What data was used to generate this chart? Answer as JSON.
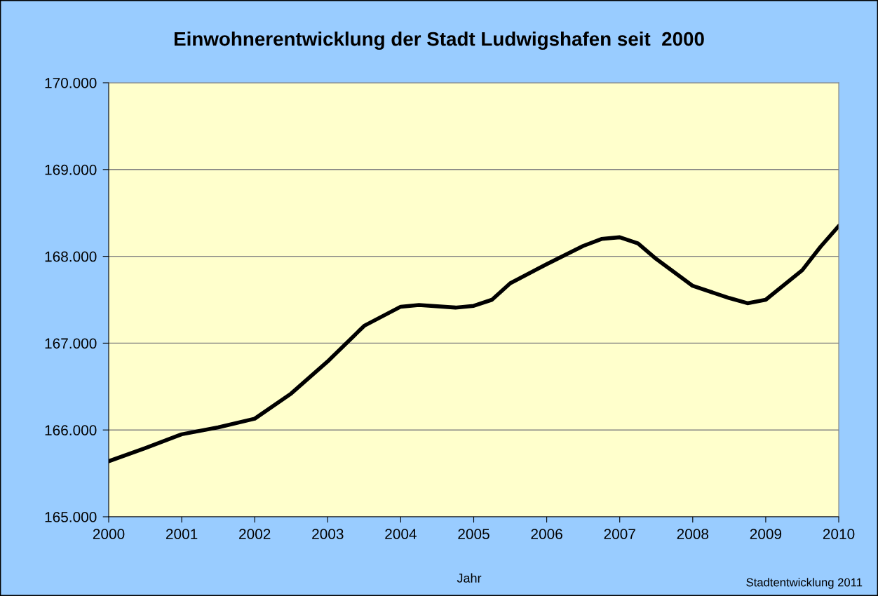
{
  "chart_data": {
    "type": "line",
    "title": "Einwohnerentwicklung der Stadt Ludwigshafen seit  2000",
    "xlabel": "Jahr",
    "series": [
      {
        "color": "#000000",
        "x": [
          2000,
          2000.5,
          2001,
          2001.5,
          2002,
          2002.5,
          2003,
          2003.5,
          2004,
          2004.25,
          2004.75,
          2005,
          2005.25,
          2005.5,
          2006,
          2006.5,
          2006.75,
          2007,
          2007.25,
          2007.5,
          2008,
          2008.5,
          2008.75,
          2009,
          2009.5,
          2009.75,
          2010
        ],
        "values": [
          165640,
          165790,
          165950,
          166030,
          166130,
          166420,
          166790,
          167200,
          167420,
          167440,
          167410,
          167430,
          167500,
          167690,
          167910,
          168120,
          168200,
          168220,
          168150,
          167970,
          167660,
          167520,
          167460,
          167500,
          167840,
          168110,
          168350
        ]
      }
    ],
    "xlim": [
      2000,
      2010
    ],
    "xticks": [
      2000,
      2001,
      2002,
      2003,
      2004,
      2005,
      2006,
      2007,
      2008,
      2009,
      2010
    ],
    "ylim": [
      165000,
      170000
    ],
    "yticks": [
      {
        "value": 165000,
        "label": "165.000"
      },
      {
        "value": 166000,
        "label": "166.000"
      },
      {
        "value": 167000,
        "label": "167.000"
      },
      {
        "value": 168000,
        "label": "168.000"
      },
      {
        "value": 169000,
        "label": "169.000"
      },
      {
        "value": 170000,
        "label": "170.000"
      }
    ],
    "grid": "y",
    "marker": "none",
    "line_style": "solid",
    "annotations": [
      "Stadtentwicklung 2011"
    ]
  }
}
